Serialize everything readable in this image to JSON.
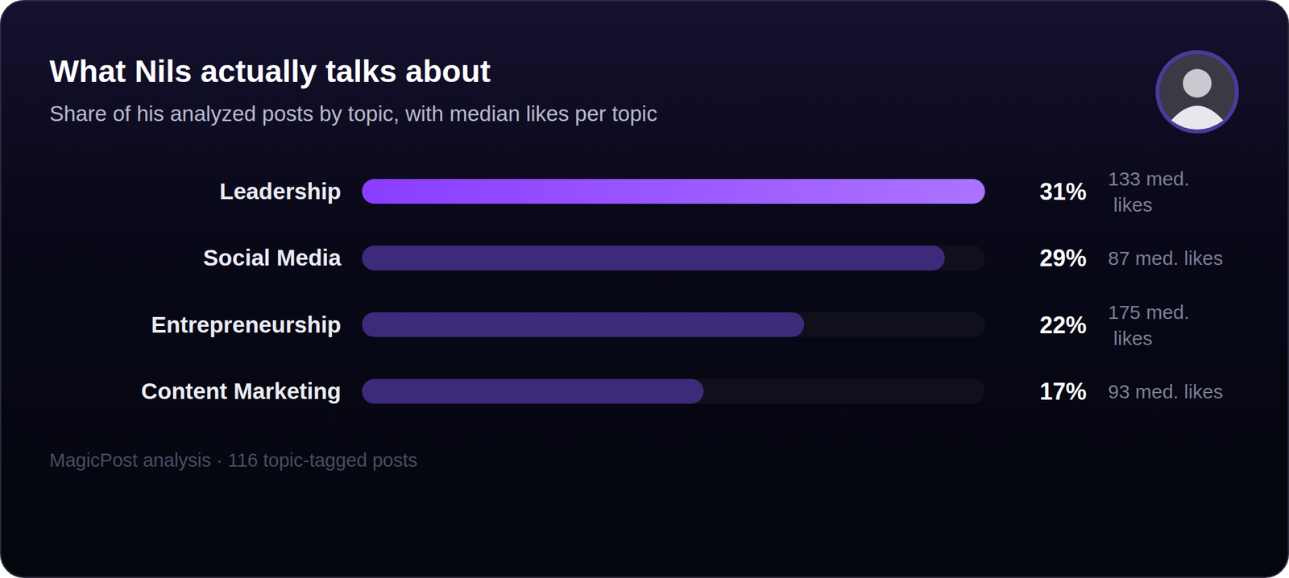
{
  "chart_data": {
    "type": "bar",
    "orientation": "horizontal",
    "title": "What Nils actually talks about",
    "subtitle": "Share of his analyzed posts by topic, with median likes per topic",
    "categories": [
      "Leadership",
      "Social Media",
      "Entrepreneurship",
      "Content Marketing"
    ],
    "values": [
      31,
      29,
      22,
      17
    ],
    "value_labels": [
      "31%",
      "29%",
      "22%",
      "17%"
    ],
    "median_likes": [
      133,
      87,
      175,
      93
    ],
    "median_likes_labels": [
      "133 med. likes",
      "87 med. likes",
      "175 med. likes",
      "93 med. likes"
    ],
    "colors": [
      "#8b3dff",
      "#3d2a7a",
      "#3d2a7a",
      "#3d2a7a"
    ],
    "xlim": [
      0,
      31
    ],
    "data_labels": true,
    "tick_labels": false,
    "grid": false,
    "source": "MagicPost analysis · 116 topic-tagged posts"
  }
}
